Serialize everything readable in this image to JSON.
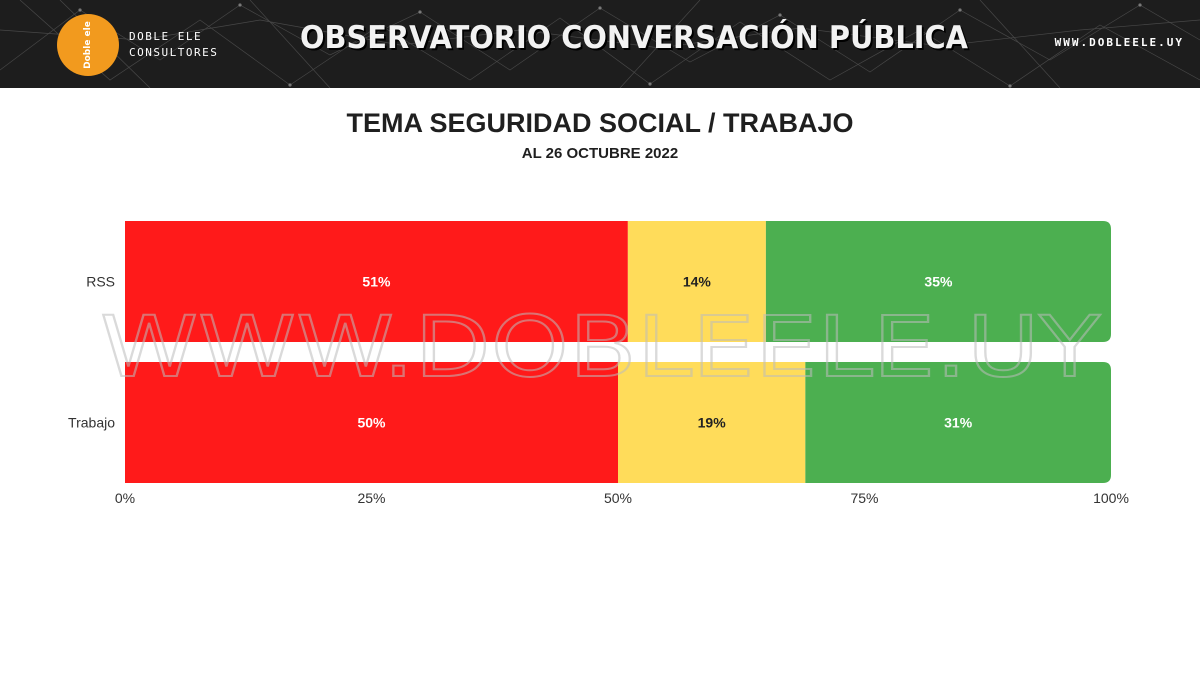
{
  "header": {
    "logo_circle_text": "Doble ele",
    "brand_line1": "DOBLE ELE",
    "brand_line2": "CONSULTORES",
    "title": "OBSERVATORIO CONVERSACIÓN PÚBLICA",
    "url": "WWW.DOBLEELE.UY"
  },
  "watermark": "WWW.DOBLEELE.UY",
  "colors": {
    "banner_bg": "#1d1d1d",
    "logo_orange": "#f29a1e",
    "red": "#ff1a1a",
    "yellow": "#ffdc5a",
    "green": "#4caf50"
  },
  "chart_data": {
    "type": "bar",
    "orientation": "horizontal",
    "stacked": true,
    "normalized": true,
    "title": "TEMA SEGURIDAD SOCIAL / TRABAJO",
    "subtitle": "AL 26 OCTUBRE 2022",
    "categories": [
      "RSS",
      "Trabajo"
    ],
    "series": [
      {
        "color": "#ff1a1a",
        "label_color": "#ffffff",
        "values": [
          51,
          50
        ]
      },
      {
        "color": "#ffdc5a",
        "label_color": "#222222",
        "values": [
          14,
          19
        ]
      },
      {
        "color": "#4caf50",
        "label_color": "#ffffff",
        "values": [
          35,
          31
        ]
      }
    ],
    "xlim": [
      0,
      100
    ],
    "x_ticks": [
      0,
      25,
      50,
      75,
      100
    ],
    "x_tick_labels": [
      "0%",
      "25%",
      "50%",
      "75%",
      "100%"
    ],
    "value_suffix": "%",
    "grid": false,
    "legend": "none"
  }
}
